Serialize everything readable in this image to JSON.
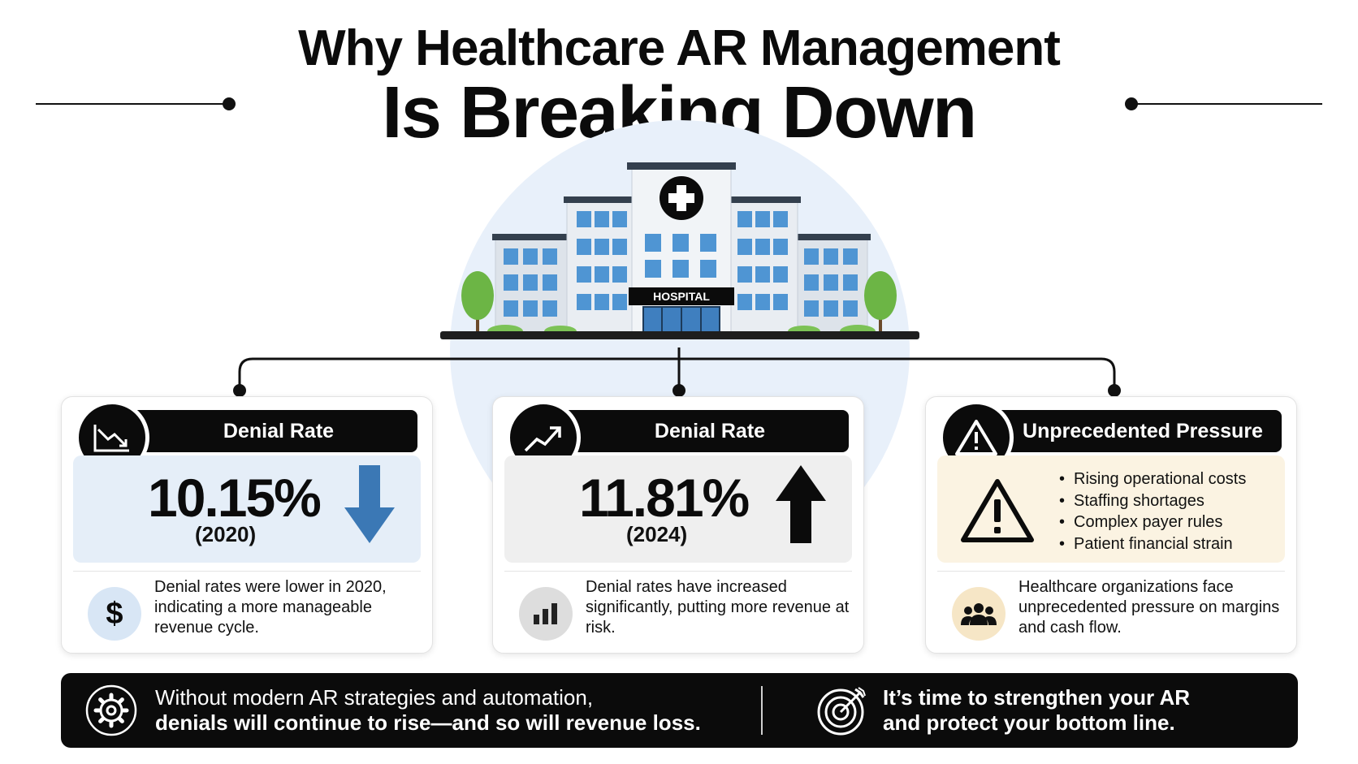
{
  "header": {
    "title_line1": "Why Healthcare AR Management",
    "title_line2": "Is Breaking Down"
  },
  "hospital": {
    "sign": "HOSPITAL"
  },
  "cards": [
    {
      "icon": "chart-down-icon",
      "header": "Denial Rate",
      "value": "10.15%",
      "year": "(2020)",
      "trend_icon": "arrow-down-icon",
      "accent": "#3b78b5",
      "foot_icon": "dollar-icon",
      "foot_symbol": "$",
      "foot_text": "Denial rates were lower in 2020, indicating a more manageable revenue cycle."
    },
    {
      "icon": "chart-up-icon",
      "header": "Denial Rate",
      "value": "11.81%",
      "year": "(2024)",
      "trend_icon": "arrow-up-icon",
      "accent": "#0b0b0b",
      "foot_icon": "bar-chart-icon",
      "foot_text": "Denial rates have increased significantly, putting more revenue at risk."
    },
    {
      "icon": "warning-icon",
      "header": "Unprecedented Pressure",
      "bullets": [
        "Rising operational costs",
        "Staffing shortages",
        "Complex payer rules",
        "Patient financial strain"
      ],
      "foot_icon": "people-icon",
      "foot_text": "Healthcare organizations face unprecedented pressure on margins and cash flow."
    }
  ],
  "banner": {
    "left_line1": "Without modern AR strategies and automation,",
    "left_line2": "denials will continue to rise—and so will revenue loss.",
    "right_line1": "It’s time to strengthen your AR",
    "right_line2": "and protect your bottom line.",
    "left_icon": "gear-icon",
    "right_icon": "target-icon"
  },
  "colors": {
    "dark": "#0b0b0b",
    "panel_blue": "#e5eef8",
    "panel_gray": "#efefef",
    "panel_cream": "#fbf3e2",
    "window_blue": "#4f95d3",
    "tree_green": "#6cb545"
  }
}
